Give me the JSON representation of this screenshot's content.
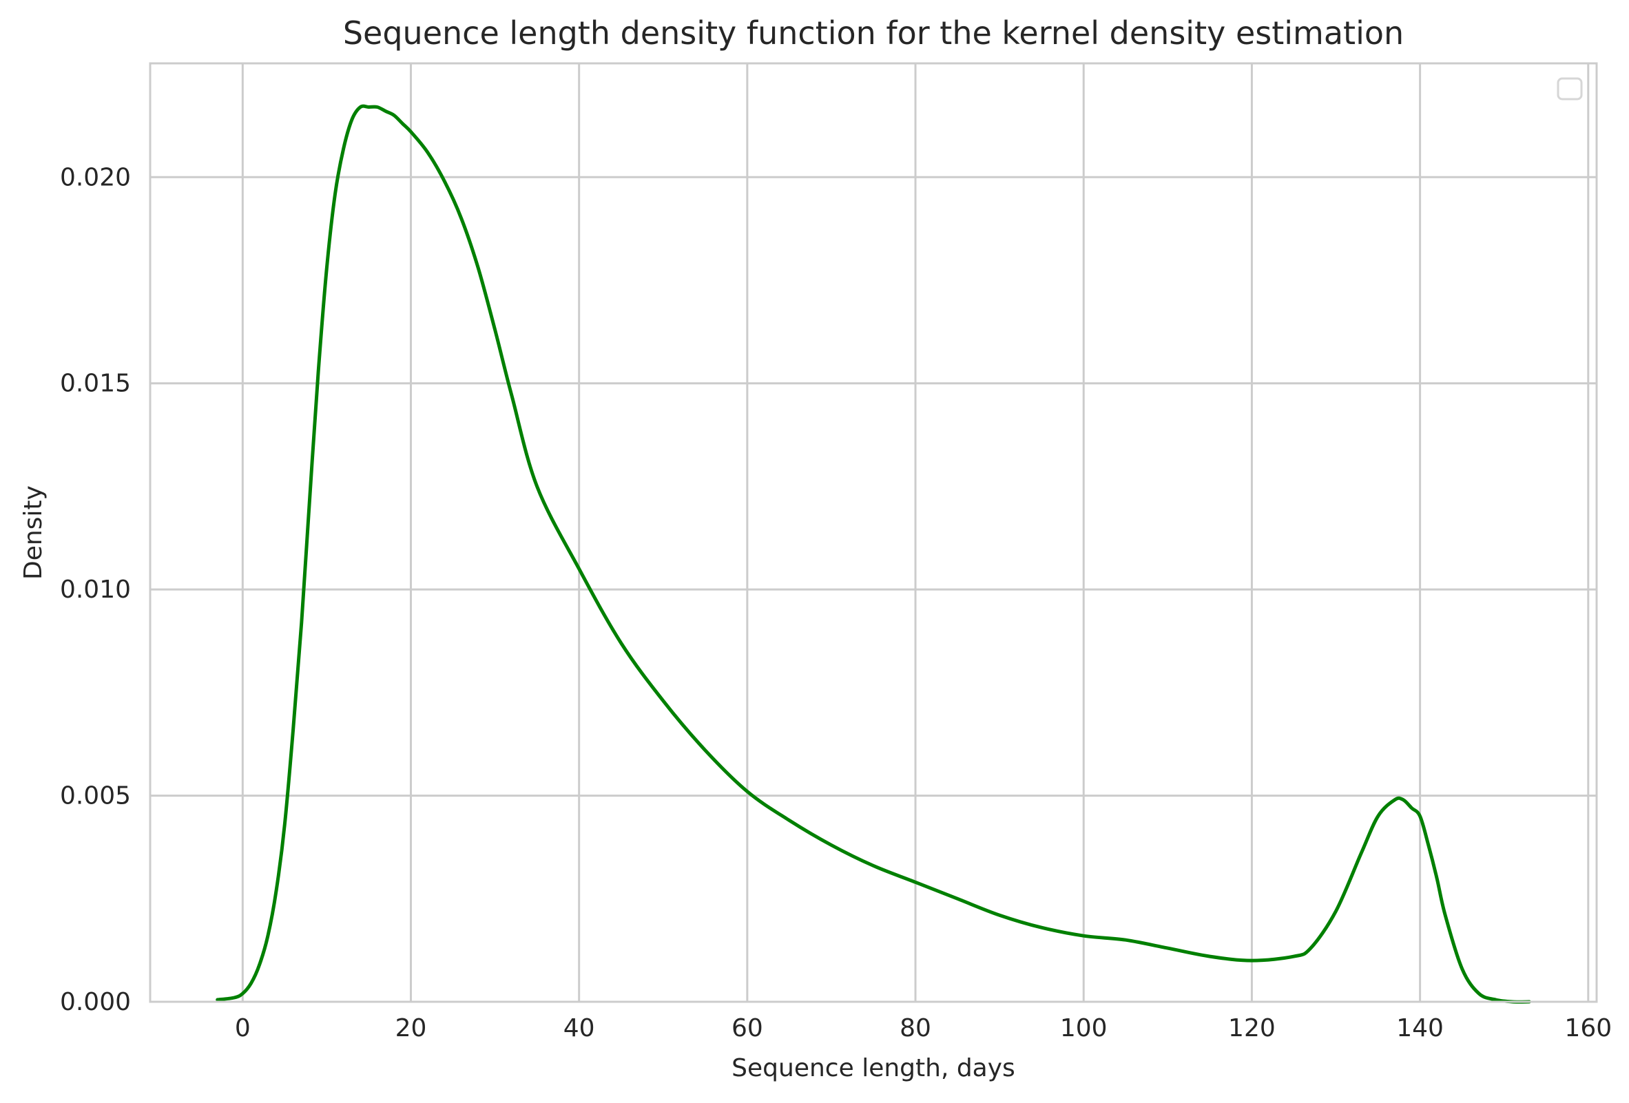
{
  "chart_data": {
    "type": "line",
    "title": "Sequence length density function for the kernel density estimation",
    "xlabel": "Sequence length, days",
    "ylabel": "Density",
    "xlim": [
      -11,
      161
    ],
    "ylim": [
      0,
      0.02276
    ],
    "xticks": [
      0,
      20,
      40,
      60,
      80,
      100,
      120,
      140,
      160
    ],
    "xtick_labels": [
      "0",
      "20",
      "40",
      "60",
      "80",
      "100",
      "120",
      "140",
      "160"
    ],
    "yticks": [
      0.0,
      0.005,
      0.01,
      0.015,
      0.02
    ],
    "ytick_labels": [
      "0.000",
      "0.005",
      "0.010",
      "0.015",
      "0.020"
    ],
    "grid": true,
    "legend": {
      "placement": "upper-right",
      "entries": []
    },
    "colors": {
      "line": "#008000",
      "grid": "#cccccc",
      "frame": "#cccccc"
    },
    "series": [
      {
        "x": [
          -3,
          -1,
          0,
          1,
          2,
          3,
          4,
          5,
          6,
          7,
          8,
          9,
          10,
          11,
          12,
          13,
          14,
          15,
          16,
          17,
          18,
          19,
          20,
          22,
          24,
          26,
          28,
          30,
          32,
          35,
          40,
          45,
          50,
          55,
          60,
          65,
          70,
          75,
          80,
          85,
          90,
          95,
          100,
          105,
          110,
          115,
          120,
          125,
          127,
          130,
          133,
          135,
          137,
          138,
          139,
          140,
          141,
          142,
          143,
          145,
          147,
          149,
          151,
          153
        ],
        "y": [
          5e-05,
          0.0001,
          0.0002,
          0.00045,
          0.0009,
          0.0016,
          0.0027,
          0.0043,
          0.0066,
          0.0092,
          0.0123,
          0.0153,
          0.0178,
          0.0196,
          0.0207,
          0.0214,
          0.0217,
          0.0217,
          0.0217,
          0.0216,
          0.0215,
          0.0213,
          0.0211,
          0.0206,
          0.0199,
          0.019,
          0.0178,
          0.0163,
          0.0147,
          0.0125,
          0.0105,
          0.0087,
          0.0073,
          0.0061,
          0.0051,
          0.0044,
          0.0038,
          0.0033,
          0.0029,
          0.0025,
          0.0021,
          0.0018,
          0.0016,
          0.0015,
          0.0013,
          0.0011,
          0.001,
          0.0011,
          0.0013,
          0.0022,
          0.0036,
          0.0045,
          0.0049,
          0.0049,
          0.0047,
          0.0045,
          0.0038,
          0.003,
          0.0021,
          0.0008,
          0.0002,
          5e-05,
          0.0,
          0.0
        ]
      }
    ]
  }
}
